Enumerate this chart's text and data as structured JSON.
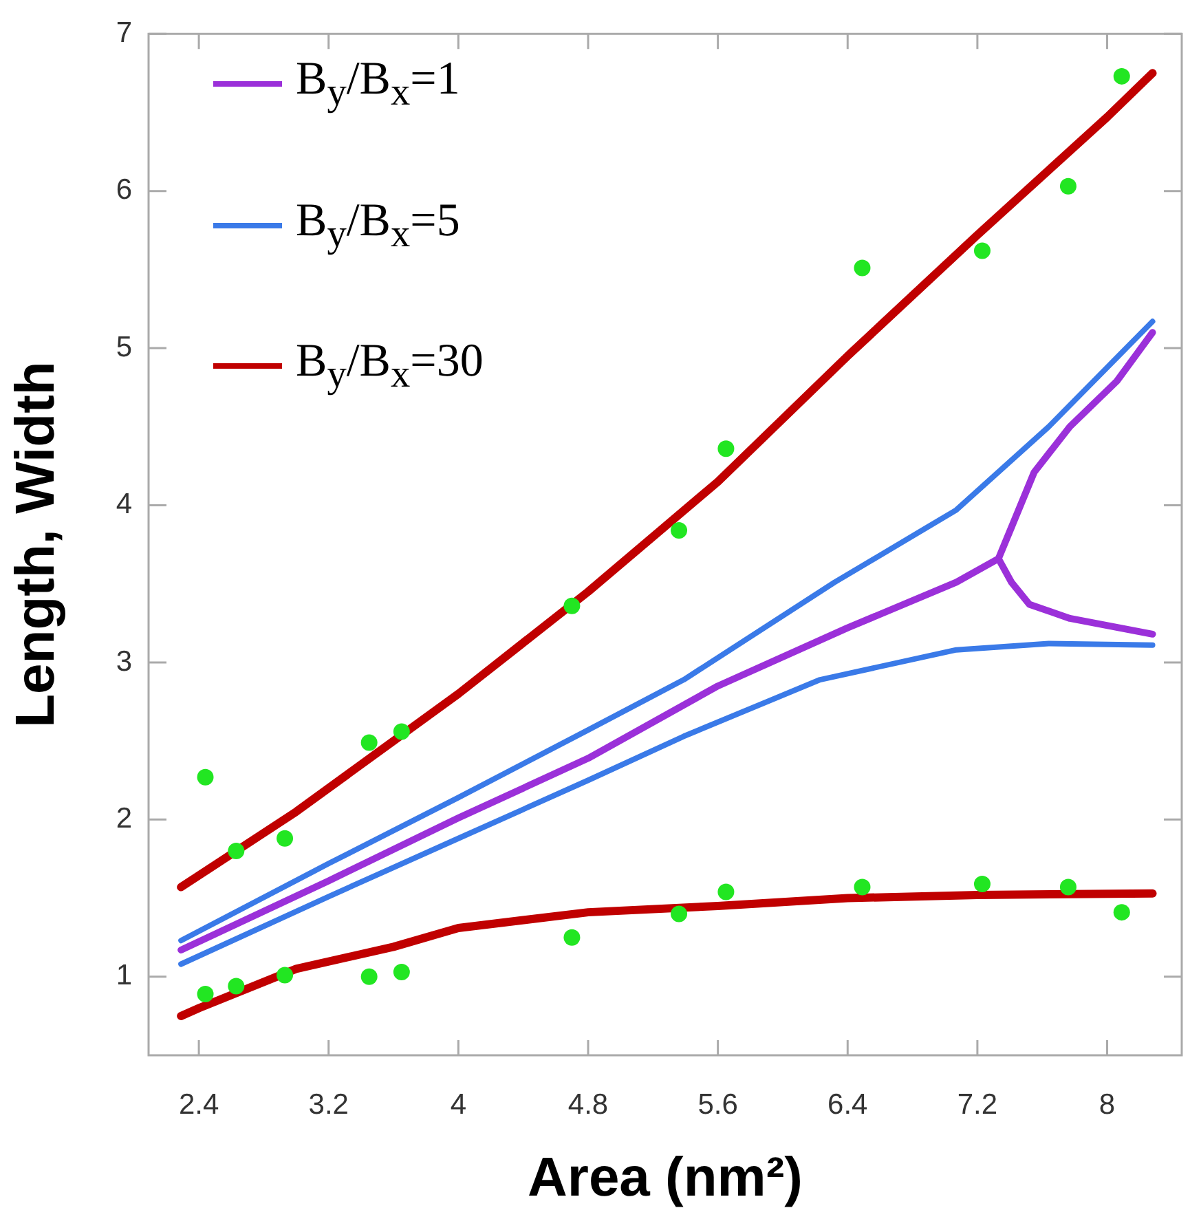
{
  "chart_data": {
    "type": "line",
    "xlabel": "Area (nm²)",
    "ylabel": "Length, Width",
    "xlim": [
      2.09,
      8.46
    ],
    "ylim": [
      0.5,
      7
    ],
    "xticks": [
      2.4,
      3.2,
      4,
      4.8,
      5.6,
      6.4,
      7.2,
      8
    ],
    "yticks": [
      1,
      2,
      3,
      4,
      5,
      6,
      7
    ],
    "legend": "top left",
    "series": [
      {
        "name": "B$_{y}$/B$_{x}$=1",
        "color": "#9b30d9",
        "marker": "none",
        "x": [
          2.29,
          3.2,
          4.0,
          4.8,
          5.6,
          6.4,
          7.07,
          7.33,
          7.41,
          7.55,
          7.77,
          8.06,
          8.28
        ],
        "values": [
          1.17,
          1.61,
          2.01,
          2.39,
          2.85,
          3.22,
          3.51,
          3.66,
          3.86,
          4.21,
          4.5,
          4.79,
          5.1
        ]
      },
      {
        "color": "#9b30d9",
        "marker": "none",
        "x": [
          7.33,
          7.41,
          7.52,
          7.77,
          8.28
        ],
        "values": [
          3.66,
          3.51,
          3.37,
          3.28,
          3.18
        ]
      },
      {
        "name": "B$_{y}$/B$_{x}$=5",
        "color": "#3a7ae8",
        "marker": "none",
        "x": [
          2.29,
          3.2,
          4.0,
          4.8,
          5.39,
          6.32,
          7.07,
          7.64,
          8.28
        ],
        "values": [
          1.23,
          1.72,
          2.14,
          2.57,
          2.89,
          3.51,
          3.97,
          4.5,
          5.17
        ]
      },
      {
        "color": "#3a7ae8",
        "marker": "none",
        "x": [
          2.29,
          3.2,
          4.0,
          4.8,
          5.39,
          6.23,
          7.07,
          7.64,
          8.28
        ],
        "values": [
          1.08,
          1.51,
          1.88,
          2.25,
          2.53,
          2.89,
          3.08,
          3.12,
          3.11
        ]
      },
      {
        "name": "B$_{y}$/B$_{x}$=30",
        "color": "#c00000",
        "marker": "none",
        "x": [
          2.29,
          3.0,
          3.6,
          4.0,
          4.8,
          5.6,
          6.4,
          7.2,
          8.0,
          8.28
        ],
        "values": [
          1.57,
          2.05,
          2.5,
          2.8,
          3.45,
          4.15,
          4.95,
          5.72,
          6.47,
          6.75
        ]
      },
      {
        "color": "#c00000",
        "marker": "none",
        "x": [
          2.29,
          2.4,
          3.0,
          3.6,
          4.0,
          4.8,
          5.6,
          6.4,
          7.2,
          8.28
        ],
        "values": [
          0.75,
          0.8,
          1.05,
          1.19,
          1.31,
          1.41,
          1.45,
          1.5,
          1.52,
          1.53
        ]
      },
      {
        "type": "scatter",
        "color": "#22e622",
        "marker": "circle",
        "x": [
          2.44,
          2.44,
          2.63,
          2.63,
          2.93,
          2.93,
          3.45,
          3.45,
          3.65,
          3.65,
          4.7,
          4.7,
          5.36,
          5.36,
          5.65,
          5.65,
          6.49,
          6.49,
          7.23,
          7.23,
          7.76,
          7.76,
          8.09,
          8.09
        ],
        "values": [
          2.27,
          0.89,
          1.8,
          0.94,
          1.88,
          1.01,
          2.49,
          1.0,
          2.56,
          1.03,
          3.36,
          1.25,
          3.84,
          1.4,
          4.36,
          1.54,
          5.51,
          1.57,
          5.62,
          1.59,
          6.03,
          1.57,
          6.73,
          1.41
        ]
      }
    ]
  }
}
